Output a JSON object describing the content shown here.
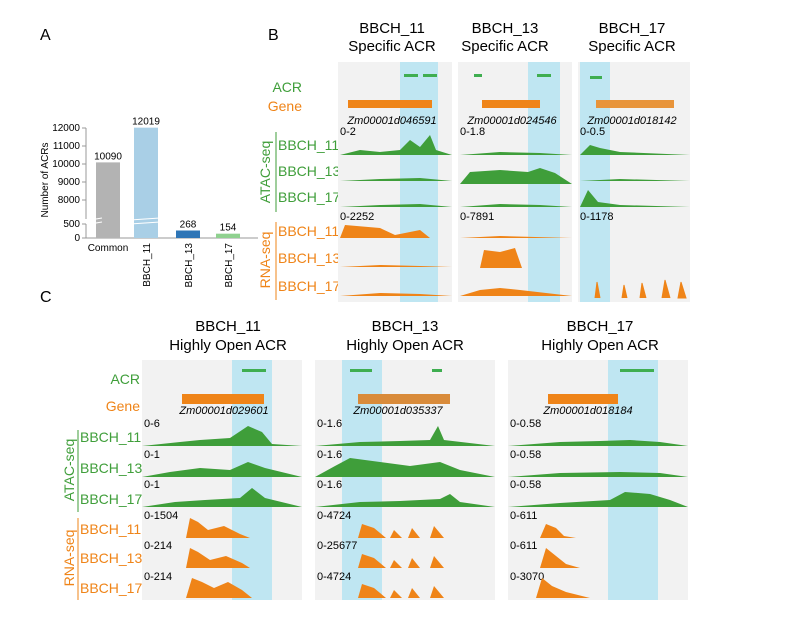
{
  "panels": {
    "a": "A",
    "b": "B",
    "c": "C"
  },
  "colors": {
    "atac": "#3f9e3a",
    "rna": "#ef8418",
    "highlight": "#bfe6f2",
    "acr": "#3fae50",
    "gene": "#ef8418",
    "common": "#b3b3b3",
    "b11": "#a9cfe6",
    "b13": "#2e75b6",
    "b17": "#8fd18f"
  },
  "chart_data": {
    "type": "bar",
    "ylabel": "Number of ACRs",
    "categories": [
      "Common",
      "BBCH_11",
      "BBCH_13",
      "BBCH_17"
    ],
    "values": [
      10090,
      12019,
      268,
      154
    ],
    "value_labels": [
      "10090",
      "12019",
      "268",
      "154"
    ],
    "ylim_upper": [
      8000,
      12000
    ],
    "ylim_lower": [
      0,
      500
    ],
    "y_ticks_upper": [
      "8000",
      "9000",
      "10000",
      "11000",
      "12000"
    ],
    "y_ticks_lower": [
      "0",
      "500"
    ],
    "axis_break": true
  },
  "track_labels": {
    "acr": "ACR",
    "gene": "Gene",
    "atac_group": "ATAC-seq",
    "rna_group": "RNA-seq",
    "samples": [
      "BBCH_11",
      "BBCH_13",
      "BBCH_17"
    ]
  },
  "panel_b": {
    "columns": [
      {
        "title1": "BBCH_11",
        "title2": "Specific ACR",
        "gene_id": "Zm00001d046591",
        "atac_scale": "0-2",
        "rna_scale": "0-2252"
      },
      {
        "title1": "BBCH_13",
        "title2": "Specific ACR",
        "gene_id": "Zm00001d024546",
        "atac_scale": "0-1.8",
        "rna_scale": "0-7891"
      },
      {
        "title1": "BBCH_17",
        "title2": "Specific ACR",
        "gene_id": "Zm00001d018142",
        "atac_scale": "0-0.5",
        "rna_scale": "0-1178"
      }
    ]
  },
  "panel_c": {
    "columns": [
      {
        "title1": "BBCH_11",
        "title2": "Highly Open ACR",
        "gene_id": "Zm00001d029601",
        "atac_scales": [
          "0-6",
          "0-1",
          "0-1"
        ],
        "rna_scales": [
          "0-1504",
          "0-214",
          "0-214"
        ]
      },
      {
        "title1": "BBCH_13",
        "title2": "Highly Open ACR",
        "gene_id": "Zm00001d035337",
        "atac_scales": [
          "0-1.6",
          "0-1.6",
          "0-1.6"
        ],
        "rna_scales": [
          "0-4724",
          "0-25677",
          "0-4724"
        ]
      },
      {
        "title1": "BBCH_17",
        "title2": "Highly Open ACR",
        "gene_id": "Zm00001d018184",
        "atac_scales": [
          "0-0.58",
          "0-0.58",
          "0-0.58"
        ],
        "rna_scales": [
          "0-611",
          "0-611",
          "0-3070"
        ]
      }
    ]
  }
}
